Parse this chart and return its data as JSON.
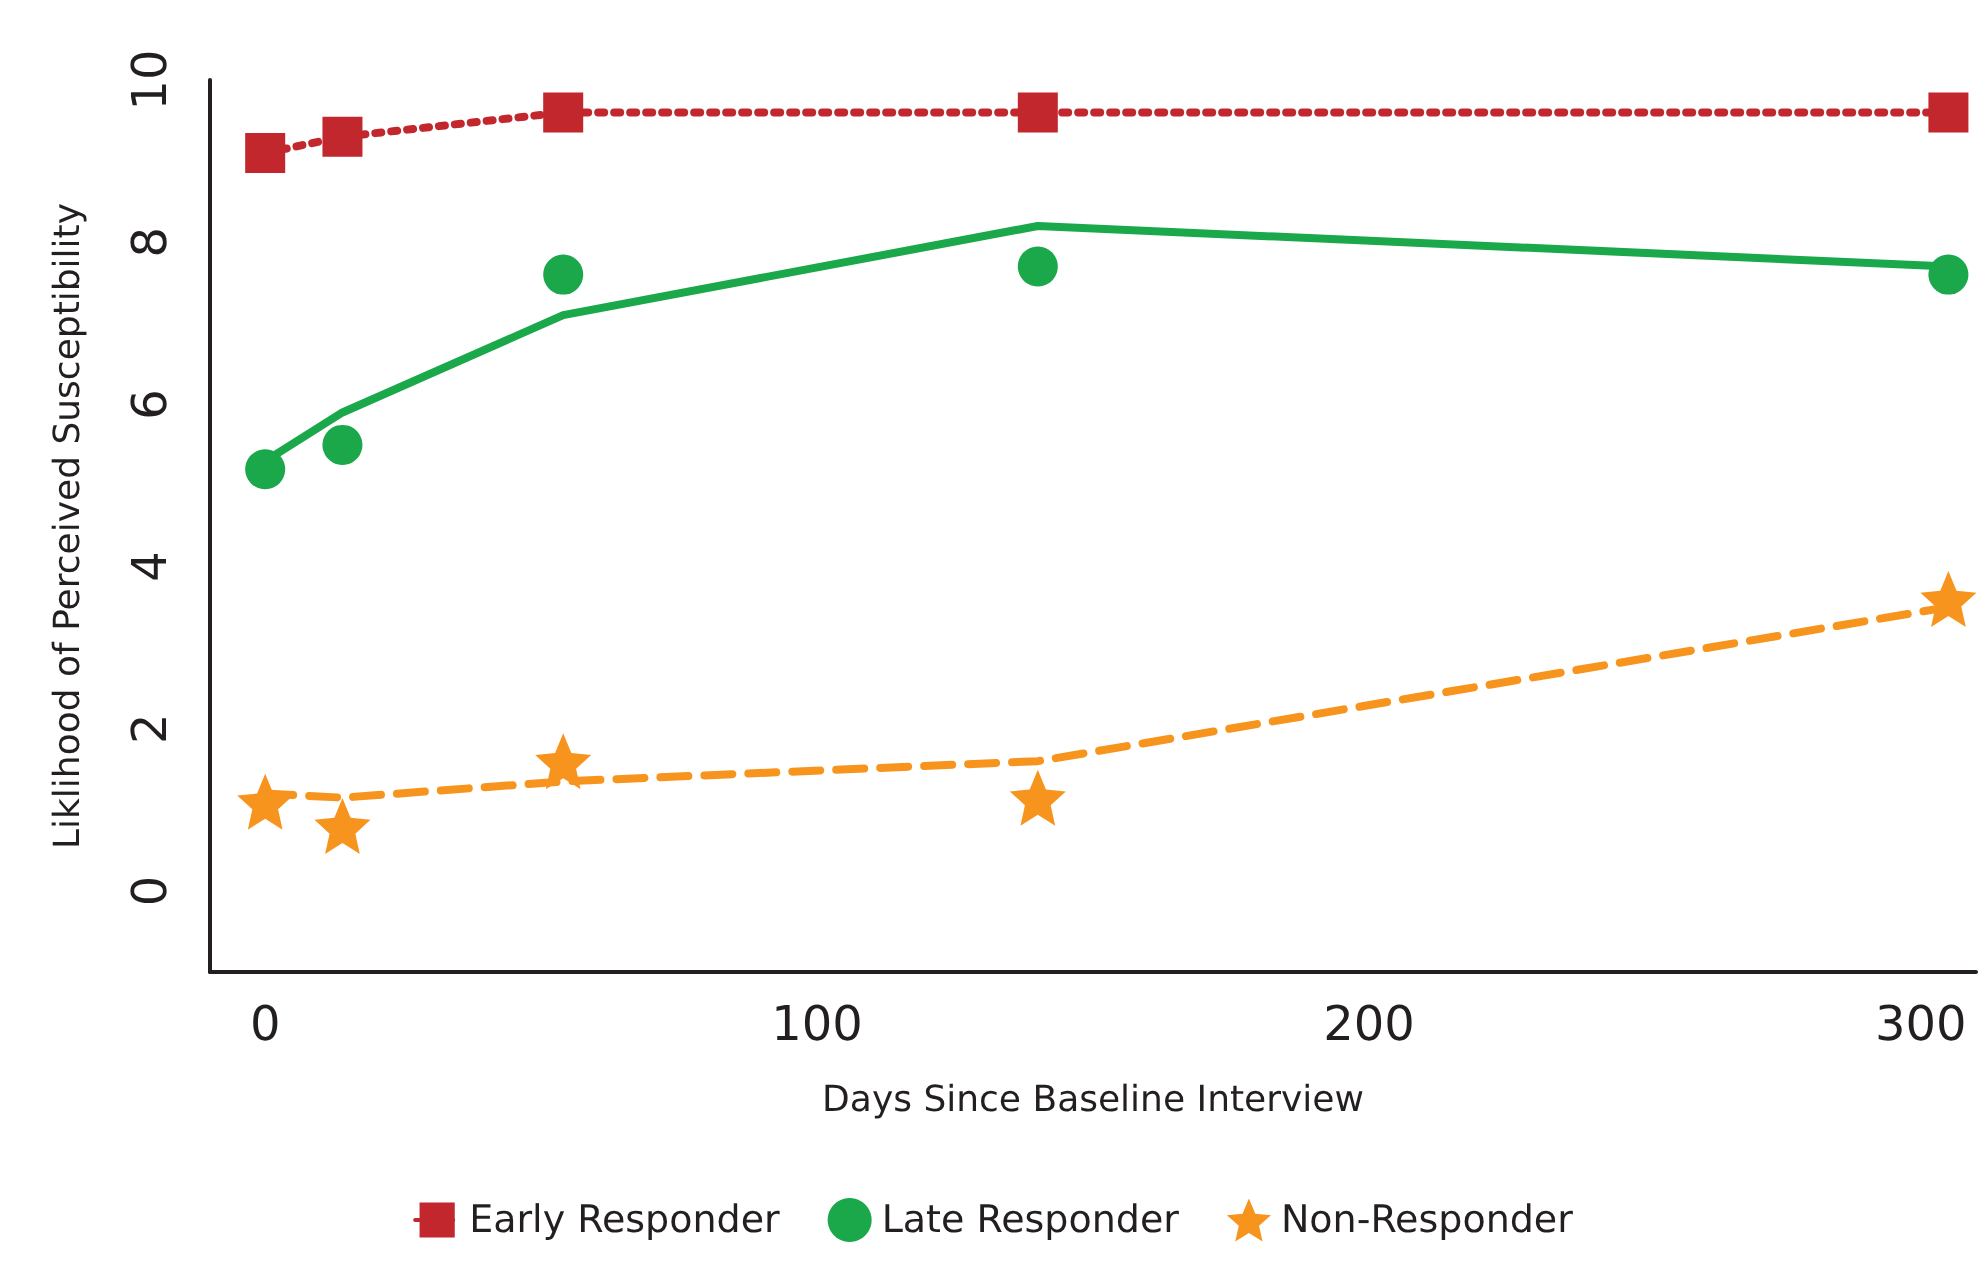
{
  "chart_data": {
    "type": "line",
    "xlabel": "Days Since Baseline Interview",
    "ylabel": "Liklihood of Perceived Susceptibility",
    "xlim": [
      -10,
      310
    ],
    "xticks": [
      0,
      100,
      200,
      300
    ],
    "ylim": [
      -1,
      10
    ],
    "yticks": [
      0,
      2,
      4,
      6,
      8,
      10
    ],
    "grid": false,
    "legend": "bottom",
    "series": [
      {
        "name": "Early Responder",
        "color": "#c1272d",
        "marker": "square",
        "line_style": "dotted",
        "x": [
          0,
          14,
          54,
          140,
          305
        ],
        "values": [
          9.1,
          9.3,
          9.6,
          9.6,
          9.6
        ]
      },
      {
        "name": "Late Responder",
        "type": "scatter",
        "color": "#1aa84b",
        "marker": "circle",
        "x": [
          0,
          14,
          54,
          140,
          305
        ],
        "values": [
          5.2,
          5.5,
          7.6,
          7.7,
          7.6
        ]
      },
      {
        "color": "#1aa84b",
        "marker": "none",
        "line_style": "solid",
        "x": [
          0,
          14,
          54,
          140,
          305
        ],
        "values": [
          5.3,
          5.9,
          7.1,
          8.2,
          7.7
        ]
      },
      {
        "name": "Non-Responder",
        "type": "scatter",
        "color": "#f7941d",
        "marker": "star",
        "x": [
          0,
          14,
          54,
          140,
          305
        ],
        "values": [
          1.1,
          0.8,
          1.6,
          1.15,
          3.6
        ]
      },
      {
        "color": "#f7941d",
        "marker": "none",
        "line_style": "dashed",
        "x": [
          0,
          14,
          54,
          140,
          305
        ],
        "values": [
          1.2,
          1.15,
          1.35,
          1.6,
          3.5
        ]
      }
    ]
  }
}
